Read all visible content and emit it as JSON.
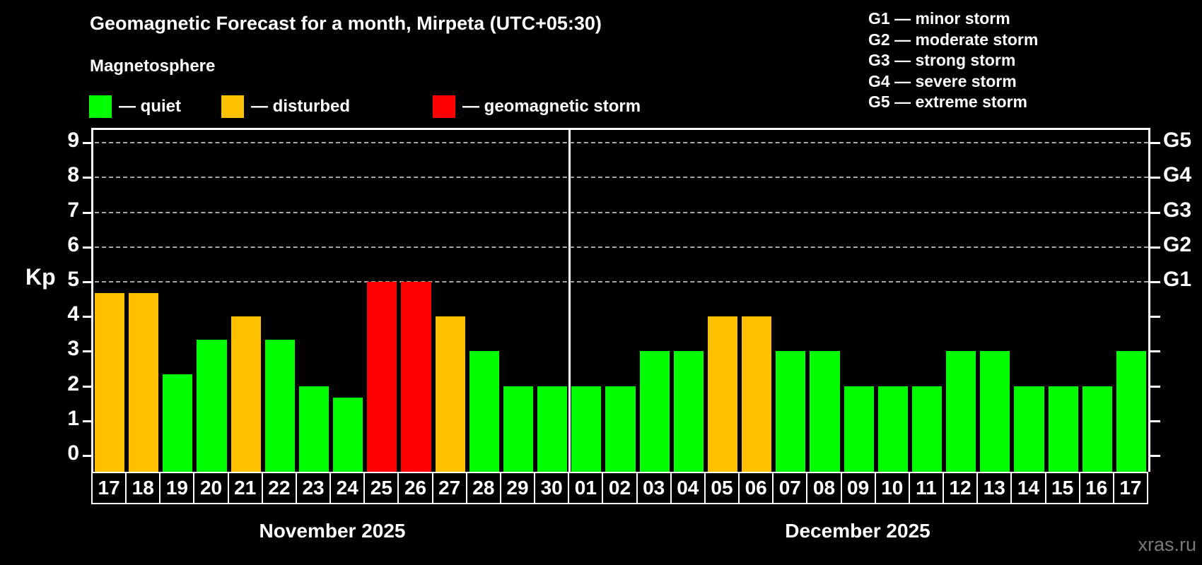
{
  "title": "Geomagnetic Forecast for a month, Mirpeta (UTC+05:30)",
  "subtitle": "Magnetosphere",
  "legend": {
    "items": [
      {
        "name": "quiet",
        "label": "— quiet",
        "color": "#00ff00"
      },
      {
        "name": "disturbed",
        "label": "— disturbed",
        "color": "#ffc000"
      },
      {
        "name": "storm",
        "label": "— geomagnetic storm",
        "color": "#ff0000"
      }
    ]
  },
  "g_legend": [
    "G1 — minor storm",
    "G2 — moderate storm",
    "G3 — strong storm",
    "G4 — severe storm",
    "G5 — extreme storm"
  ],
  "watermark": "xras.ru",
  "chart_data": {
    "type": "bar",
    "title": "Geomagnetic Forecast for a month, Mirpeta (UTC+05:30)",
    "ylabel": "Kp",
    "ylim": [
      0,
      9
    ],
    "yticks": [
      0,
      1,
      2,
      3,
      4,
      5,
      6,
      7,
      8,
      9
    ],
    "gridlines": [
      5,
      6,
      7,
      8,
      9
    ],
    "right_axis_labels": {
      "5": "G1",
      "6": "G2",
      "7": "G3",
      "8": "G4",
      "9": "G5"
    },
    "legend_position": "top",
    "grid": "dashed horizontal at Kp 5-9 only",
    "months": [
      {
        "label": "November 2025",
        "days_count": 14
      },
      {
        "label": "December 2025",
        "days_count": 17
      }
    ],
    "status_colors": {
      "quiet": "#00ff00",
      "disturbed": "#ffc000",
      "storm": "#ff0000"
    },
    "series": [
      {
        "day": "17",
        "value": 4.67,
        "status": "disturbed"
      },
      {
        "day": "18",
        "value": 4.67,
        "status": "disturbed"
      },
      {
        "day": "19",
        "value": 2.33,
        "status": "quiet"
      },
      {
        "day": "20",
        "value": 3.33,
        "status": "quiet"
      },
      {
        "day": "21",
        "value": 4,
        "status": "disturbed"
      },
      {
        "day": "22",
        "value": 3.33,
        "status": "quiet"
      },
      {
        "day": "23",
        "value": 2,
        "status": "quiet"
      },
      {
        "day": "24",
        "value": 1.67,
        "status": "quiet"
      },
      {
        "day": "25",
        "value": 5,
        "status": "storm"
      },
      {
        "day": "26",
        "value": 5,
        "status": "storm"
      },
      {
        "day": "27",
        "value": 4,
        "status": "disturbed"
      },
      {
        "day": "28",
        "value": 3,
        "status": "quiet"
      },
      {
        "day": "29",
        "value": 2,
        "status": "quiet"
      },
      {
        "day": "30",
        "value": 2,
        "status": "quiet"
      },
      {
        "day": "01",
        "value": 2,
        "status": "quiet"
      },
      {
        "day": "02",
        "value": 2,
        "status": "quiet"
      },
      {
        "day": "03",
        "value": 3,
        "status": "quiet"
      },
      {
        "day": "04",
        "value": 3,
        "status": "quiet"
      },
      {
        "day": "05",
        "value": 4,
        "status": "disturbed"
      },
      {
        "day": "06",
        "value": 4,
        "status": "disturbed"
      },
      {
        "day": "07",
        "value": 3,
        "status": "quiet"
      },
      {
        "day": "08",
        "value": 3,
        "status": "quiet"
      },
      {
        "day": "09",
        "value": 2,
        "status": "quiet"
      },
      {
        "day": "10",
        "value": 2,
        "status": "quiet"
      },
      {
        "day": "11",
        "value": 2,
        "status": "quiet"
      },
      {
        "day": "12",
        "value": 3,
        "status": "quiet"
      },
      {
        "day": "13",
        "value": 3,
        "status": "quiet"
      },
      {
        "day": "14",
        "value": 2,
        "status": "quiet"
      },
      {
        "day": "15",
        "value": 2,
        "status": "quiet"
      },
      {
        "day": "16",
        "value": 2,
        "status": "quiet"
      },
      {
        "day": "17",
        "value": 3,
        "status": "quiet"
      }
    ]
  }
}
